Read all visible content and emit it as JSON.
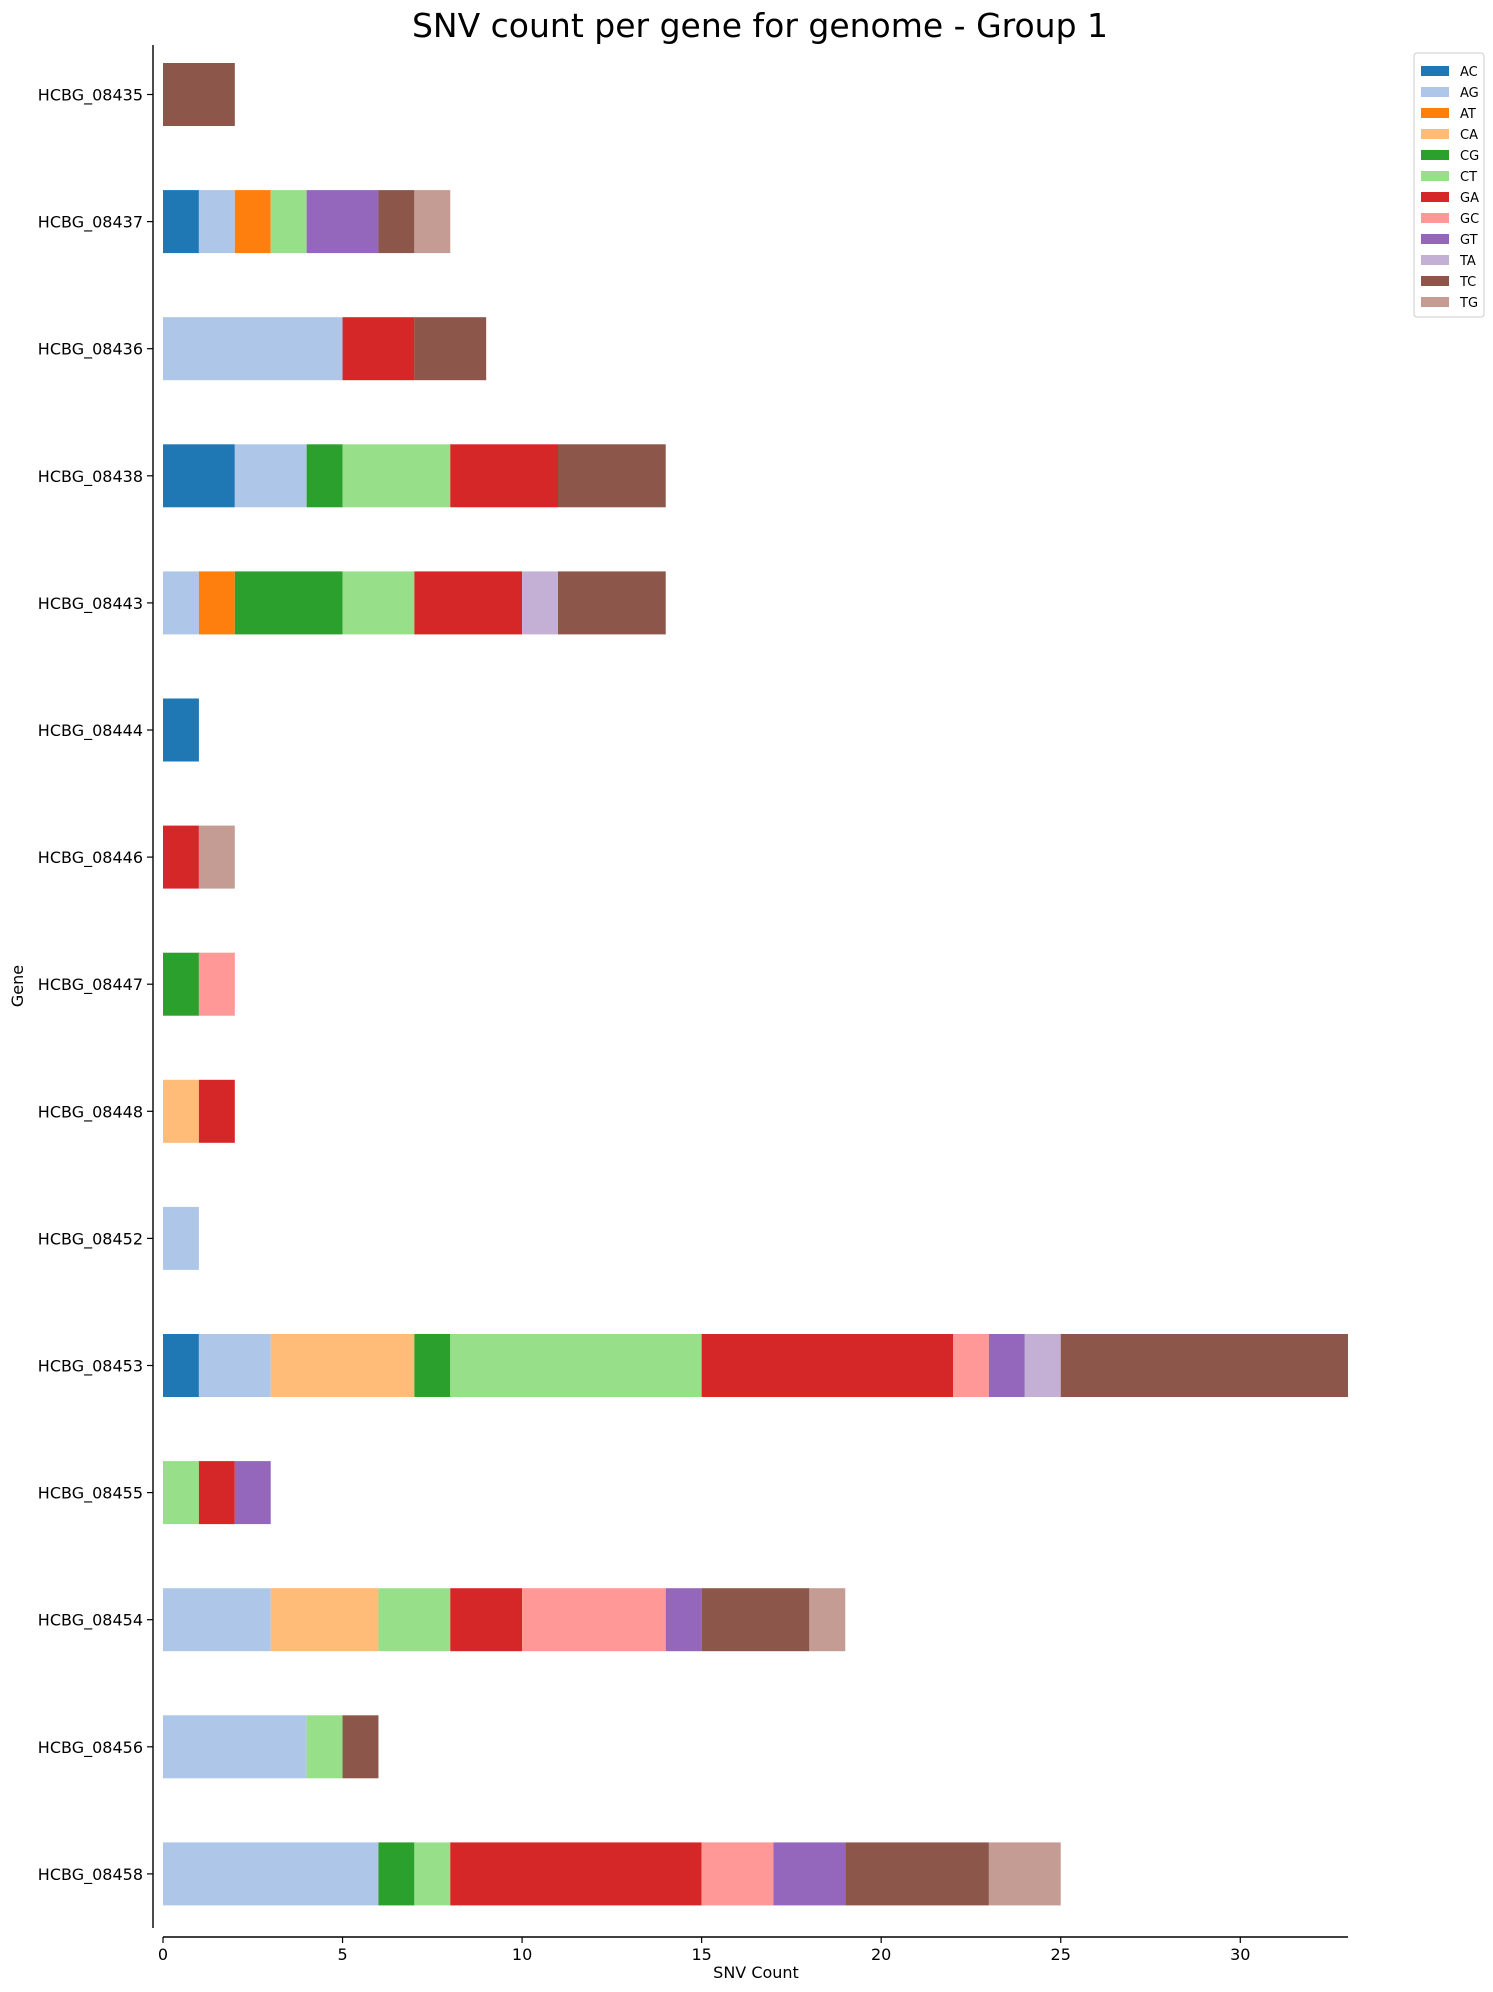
{
  "chart_data": {
    "type": "bar",
    "orientation": "horizontal",
    "stacked": true,
    "title": "SNV count per gene for genome - Group 1",
    "xlabel": "SNV Count",
    "ylabel": "Gene",
    "xlim": [
      0,
      33
    ],
    "xticks": [
      0,
      5,
      10,
      15,
      20,
      25,
      30
    ],
    "grid": false,
    "legend_position": "top-right outside",
    "categories": [
      "HCBG_08435",
      "HCBG_08437",
      "HCBG_08436",
      "HCBG_08438",
      "HCBG_08443",
      "HCBG_08444",
      "HCBG_08446",
      "HCBG_08447",
      "HCBG_08448",
      "HCBG_08452",
      "HCBG_08453",
      "HCBG_08455",
      "HCBG_08454",
      "HCBG_08456",
      "HCBG_08458"
    ],
    "series": [
      {
        "name": "AC",
        "color": "#1f77b4",
        "values": [
          0,
          1,
          0,
          2,
          0,
          1,
          0,
          0,
          0,
          0,
          1,
          0,
          0,
          0,
          0
        ]
      },
      {
        "name": "AG",
        "color": "#aec7e8",
        "values": [
          0,
          1,
          5,
          2,
          1,
          0,
          0,
          0,
          0,
          1,
          2,
          0,
          3,
          4,
          6
        ]
      },
      {
        "name": "AT",
        "color": "#ff7f0e",
        "values": [
          0,
          1,
          0,
          0,
          1,
          0,
          0,
          0,
          0,
          0,
          0,
          0,
          0,
          0,
          0
        ]
      },
      {
        "name": "CA",
        "color": "#ffbb78",
        "values": [
          0,
          0,
          0,
          0,
          0,
          0,
          0,
          0,
          1,
          0,
          4,
          0,
          3,
          0,
          0
        ]
      },
      {
        "name": "CG",
        "color": "#2ca02c",
        "values": [
          0,
          0,
          0,
          1,
          3,
          0,
          0,
          1,
          0,
          0,
          1,
          0,
          0,
          0,
          1
        ]
      },
      {
        "name": "CT",
        "color": "#98df8a",
        "values": [
          0,
          1,
          0,
          3,
          2,
          0,
          0,
          0,
          0,
          0,
          7,
          1,
          2,
          1,
          1
        ]
      },
      {
        "name": "GA",
        "color": "#d62728",
        "values": [
          0,
          0,
          2,
          3,
          3,
          0,
          1,
          0,
          1,
          0,
          7,
          1,
          2,
          0,
          7
        ]
      },
      {
        "name": "GC",
        "color": "#ff9896",
        "values": [
          0,
          0,
          0,
          0,
          0,
          0,
          0,
          1,
          0,
          0,
          1,
          0,
          4,
          0,
          2
        ]
      },
      {
        "name": "GT",
        "color": "#9467bd",
        "values": [
          0,
          2,
          0,
          0,
          0,
          0,
          0,
          0,
          0,
          0,
          1,
          1,
          1,
          0,
          2
        ]
      },
      {
        "name": "TA",
        "color": "#c5b0d5",
        "values": [
          0,
          0,
          0,
          0,
          1,
          0,
          0,
          0,
          0,
          0,
          1,
          0,
          0,
          0,
          0
        ]
      },
      {
        "name": "TC",
        "color": "#8c564b",
        "values": [
          2,
          1,
          2,
          3,
          3,
          0,
          0,
          0,
          0,
          0,
          8,
          0,
          3,
          1,
          4
        ]
      },
      {
        "name": "TG",
        "color": "#c49c94",
        "values": [
          0,
          1,
          0,
          0,
          0,
          0,
          1,
          0,
          0,
          0,
          0,
          0,
          1,
          0,
          2
        ]
      }
    ]
  }
}
